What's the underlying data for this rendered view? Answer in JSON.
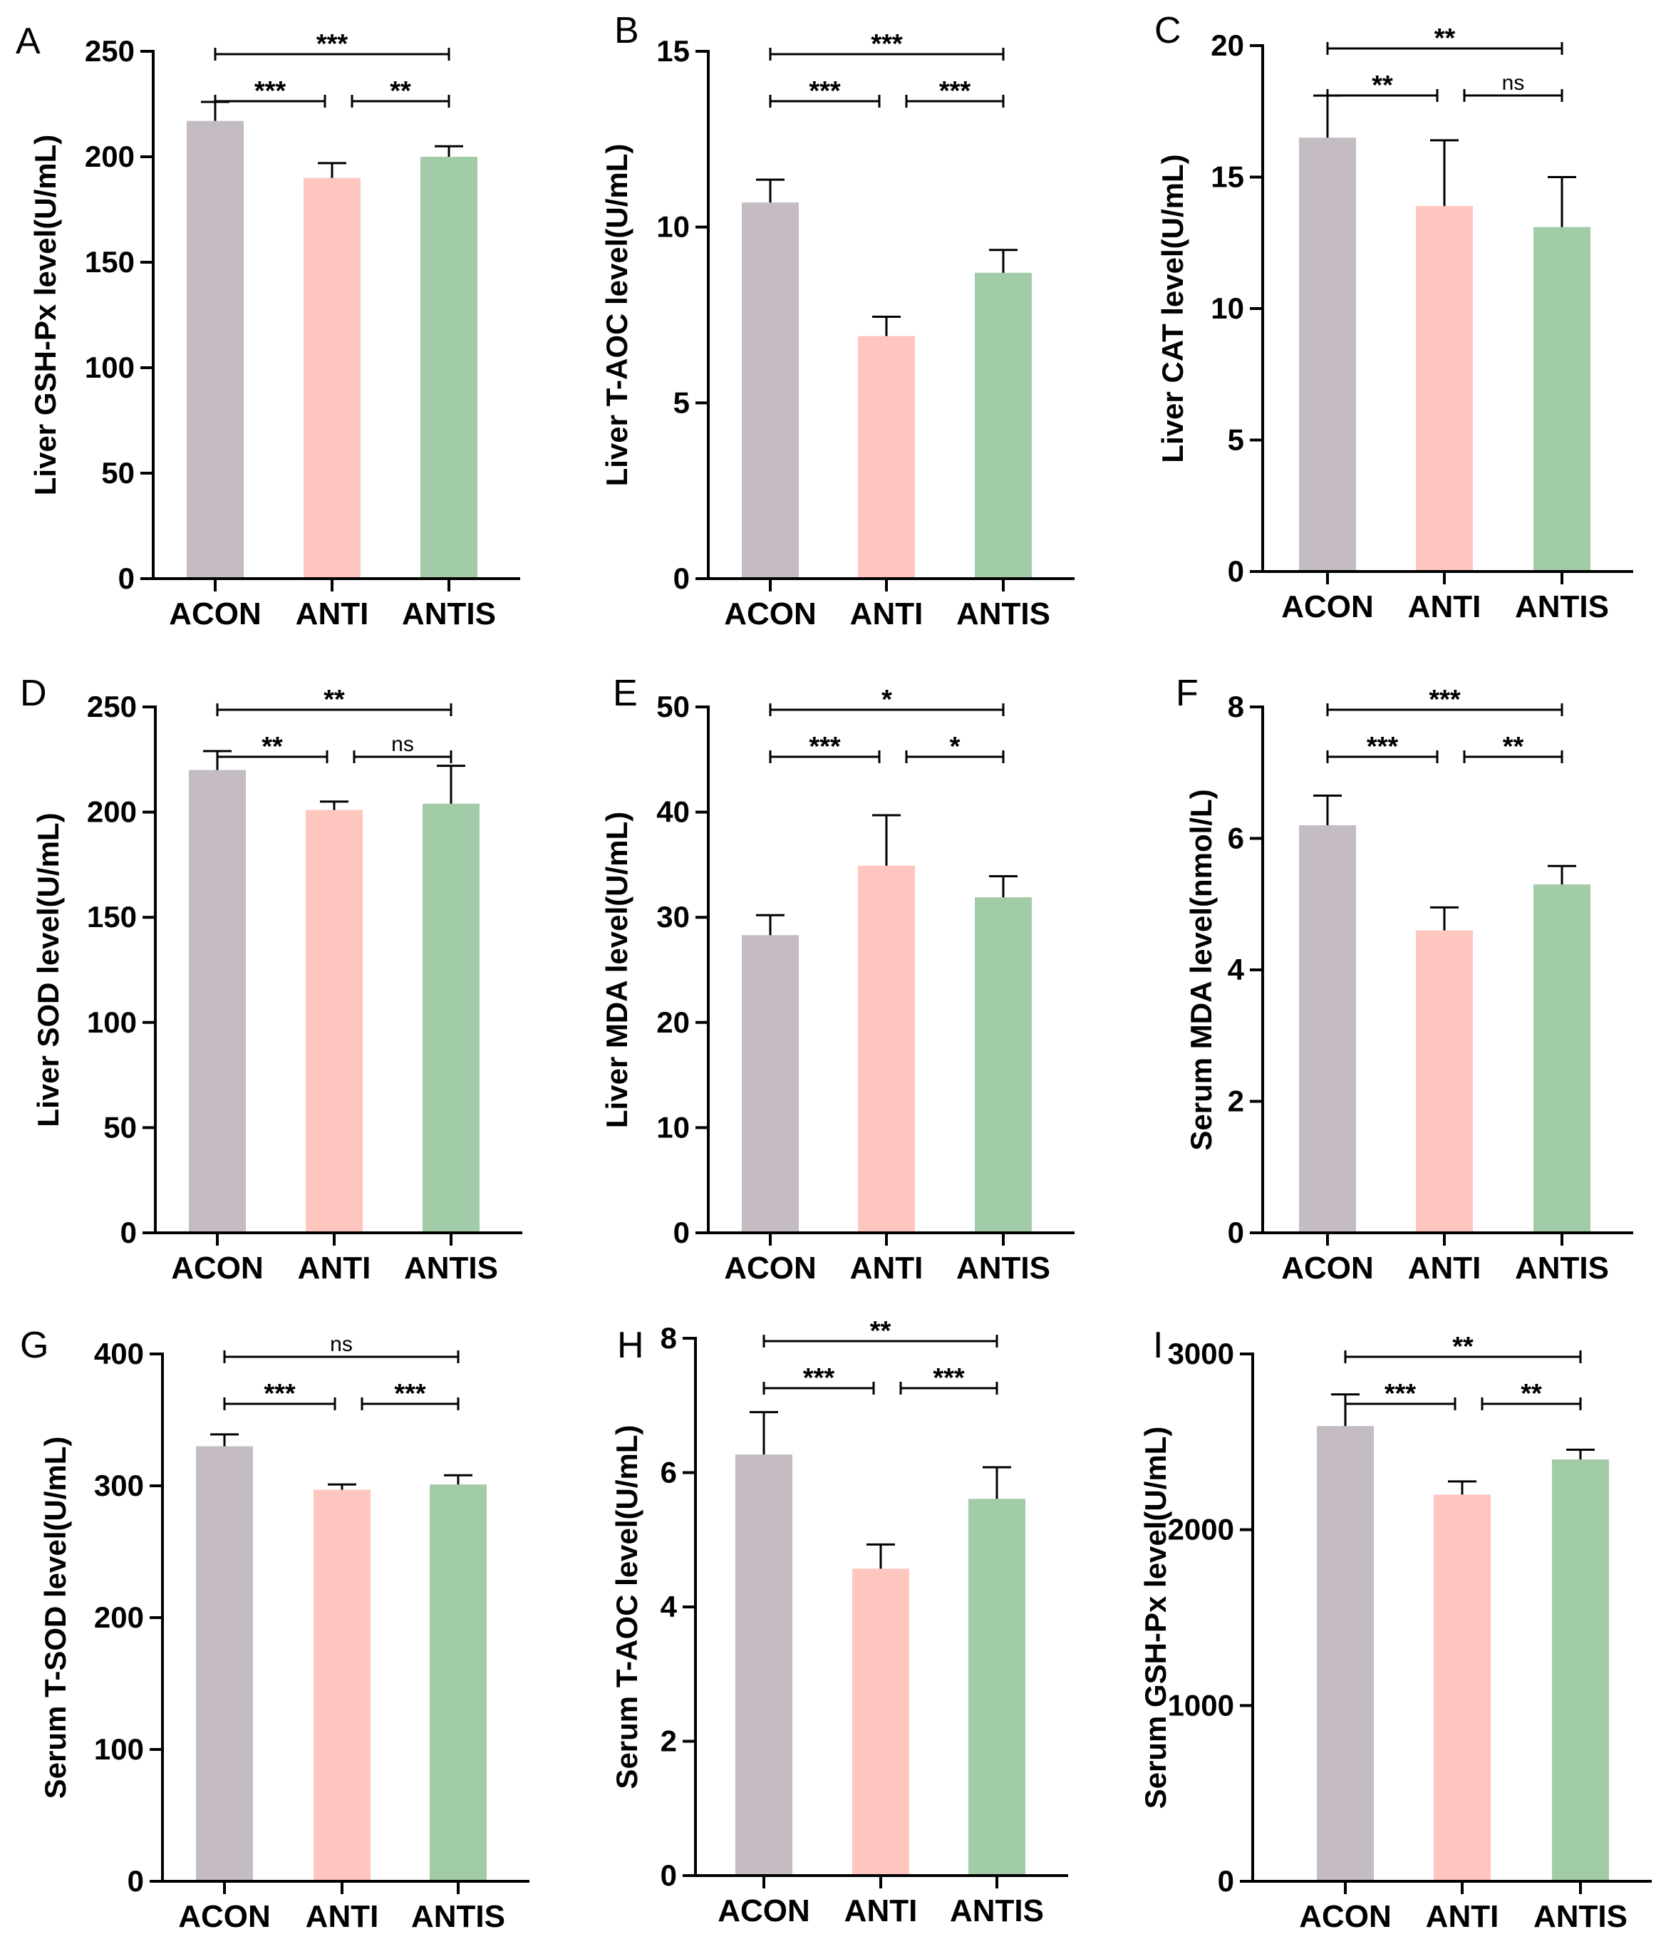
{
  "chart_data": [
    {
      "type": "bar",
      "panel": "A",
      "ylabel": "Liver GSH-Px level(U/mL)",
      "categories": [
        "ACON",
        "ANTI",
        "ANTIS"
      ],
      "values": [
        217,
        190,
        200
      ],
      "errors": [
        9,
        7,
        5
      ],
      "ylim": [
        0,
        250
      ],
      "yticks": [
        0,
        50,
        100,
        150,
        200,
        250
      ],
      "significance": [
        {
          "from": 0,
          "to": 2,
          "label": "***"
        },
        {
          "from": 0,
          "to": 1,
          "label": "***"
        },
        {
          "from": 1,
          "to": 2,
          "label": "**"
        }
      ]
    },
    {
      "type": "bar",
      "panel": "B",
      "ylabel": "Liver T-AOC level(U/mL)",
      "categories": [
        "ACON",
        "ANTI",
        "ANTIS"
      ],
      "values": [
        10.7,
        6.9,
        8.7
      ],
      "errors": [
        0.65,
        0.55,
        0.65
      ],
      "ylim": [
        0,
        15
      ],
      "yticks": [
        0,
        5,
        10,
        15
      ],
      "significance": [
        {
          "from": 0,
          "to": 2,
          "label": "***"
        },
        {
          "from": 0,
          "to": 1,
          "label": "***"
        },
        {
          "from": 1,
          "to": 2,
          "label": "***"
        }
      ]
    },
    {
      "type": "bar",
      "panel": "C",
      "ylabel": "Liver CAT level(U/mL)",
      "categories": [
        "ACON",
        "ANTI",
        "ANTIS"
      ],
      "values": [
        16.5,
        13.9,
        13.1
      ],
      "errors": [
        1.6,
        2.5,
        1.9
      ],
      "ylim": [
        0,
        20
      ],
      "yticks": [
        0,
        5,
        10,
        15,
        20
      ],
      "significance": [
        {
          "from": 0,
          "to": 2,
          "label": "**"
        },
        {
          "from": 0,
          "to": 1,
          "label": "**"
        },
        {
          "from": 1,
          "to": 2,
          "label": "ns"
        }
      ]
    },
    {
      "type": "bar",
      "panel": "D",
      "ylabel": "Liver SOD level(U/mL)",
      "categories": [
        "ACON",
        "ANTI",
        "ANTIS"
      ],
      "values": [
        220,
        201,
        204
      ],
      "errors": [
        9,
        4,
        18
      ],
      "ylim": [
        0,
        250
      ],
      "yticks": [
        0,
        50,
        100,
        150,
        200,
        250
      ],
      "significance": [
        {
          "from": 0,
          "to": 2,
          "label": "**"
        },
        {
          "from": 0,
          "to": 1,
          "label": "**"
        },
        {
          "from": 1,
          "to": 2,
          "label": "ns"
        }
      ]
    },
    {
      "type": "bar",
      "panel": "E",
      "ylabel": "Liver MDA level(U/mL)",
      "categories": [
        "ACON",
        "ANTI",
        "ANTIS"
      ],
      "values": [
        28.3,
        34.9,
        31.9
      ],
      "errors": [
        1.9,
        4.8,
        2.0
      ],
      "ylim": [
        0,
        50
      ],
      "yticks": [
        0,
        10,
        20,
        30,
        40,
        50
      ],
      "significance": [
        {
          "from": 0,
          "to": 2,
          "label": "*"
        },
        {
          "from": 0,
          "to": 1,
          "label": "***"
        },
        {
          "from": 1,
          "to": 2,
          "label": "*"
        }
      ]
    },
    {
      "type": "bar",
      "panel": "F",
      "ylabel": "Serum MDA level(nmol/L)",
      "categories": [
        "ACON",
        "ANTI",
        "ANTIS"
      ],
      "values": [
        6.2,
        4.6,
        5.3
      ],
      "errors": [
        0.45,
        0.35,
        0.28
      ],
      "ylim": [
        0,
        8
      ],
      "yticks": [
        0,
        2,
        4,
        6,
        8
      ],
      "significance": [
        {
          "from": 0,
          "to": 2,
          "label": "***"
        },
        {
          "from": 0,
          "to": 1,
          "label": "***"
        },
        {
          "from": 1,
          "to": 2,
          "label": "**"
        }
      ]
    },
    {
      "type": "bar",
      "panel": "G",
      "ylabel": "Serum T-SOD level(U/mL)",
      "categories": [
        "ACON",
        "ANTI",
        "ANTIS"
      ],
      "values": [
        330,
        297,
        301
      ],
      "errors": [
        9,
        4,
        7
      ],
      "ylim": [
        0,
        400
      ],
      "yticks": [
        0,
        100,
        200,
        300,
        400
      ],
      "significance": [
        {
          "from": 0,
          "to": 2,
          "label": "ns"
        },
        {
          "from": 0,
          "to": 1,
          "label": "***"
        },
        {
          "from": 1,
          "to": 2,
          "label": "***"
        }
      ]
    },
    {
      "type": "bar",
      "panel": "H",
      "ylabel": "Serum T-AOC level(U/mL)",
      "categories": [
        "ACON",
        "ANTI",
        "ANTIS"
      ],
      "values": [
        6.27,
        4.57,
        5.61
      ],
      "errors": [
        0.63,
        0.36,
        0.47
      ],
      "ylim": [
        0,
        8
      ],
      "yticks": [
        0,
        2,
        4,
        6,
        8
      ],
      "significance": [
        {
          "from": 0,
          "to": 2,
          "label": "**"
        },
        {
          "from": 0,
          "to": 1,
          "label": "***"
        },
        {
          "from": 1,
          "to": 2,
          "label": "***"
        }
      ]
    },
    {
      "type": "bar",
      "panel": "I",
      "ylabel": "Serum GSH-Px level(U/mL)",
      "categories": [
        "ACON",
        "ANTI",
        "ANTIS"
      ],
      "values": [
        2590,
        2200,
        2400
      ],
      "errors": [
        180,
        75,
        55
      ],
      "ylim": [
        0,
        3000
      ],
      "yticks": [
        0,
        1000,
        2000,
        3000
      ],
      "significance": [
        {
          "from": 0,
          "to": 2,
          "label": "**"
        },
        {
          "from": 0,
          "to": 1,
          "label": "***"
        },
        {
          "from": 1,
          "to": 2,
          "label": "**"
        }
      ]
    }
  ],
  "colors": {
    "ACON": "#c4bcc2",
    "ANTI": "#fec6bf",
    "ANTIS": "#a2cca7",
    "axis": "#000000"
  }
}
